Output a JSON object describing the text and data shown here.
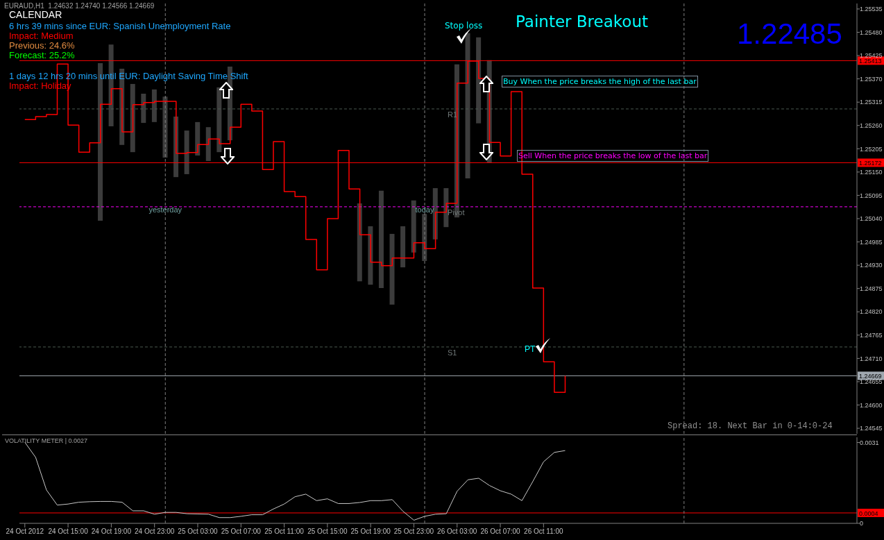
{
  "chart_data": [
    {
      "type": "bar",
      "title": "Painter Breakout",
      "subtitle": "EURAUD,H1  1.24632 1.24740 1.24566 1.24669",
      "annotations": [
        "CALENDAR",
        "6 hrs 39 mins since EUR: Spanish Unemployment Rate",
        "Impact: Medium",
        "Previous: 24.6%",
        "Forecast: 25.2%",
        "1 days 12 hrs 20 mins until EUR: Daylight Saving Time Shift",
        "Impact: Holiday",
        "Stop loss",
        "Buy When the price breaks the high of the last bar",
        "Sell When the price breaks the low of the last bar",
        "1.22485",
        "PT",
        "Spread: 18. Next Bar in 0-14:0-24"
      ],
      "series": [
        {
          "color": "#3c3c3c",
          "x": [
            "2012-10-24T18:00",
            "2012-10-24T19:00",
            "2012-10-24T20:00",
            "2012-10-24T21:00",
            "2012-10-24T22:00",
            "2012-10-24T23:00",
            "2012-10-25T00:00",
            "2012-10-25T01:00",
            "2012-10-25T02:00",
            "2012-10-25T03:00",
            "2012-10-25T04:00",
            "2012-10-25T05:00",
            "2012-10-25T06:00",
            "2012-10-25T18:00",
            "2012-10-25T19:00",
            "2012-10-25T20:00",
            "2012-10-25T21:00",
            "2012-10-25T22:00",
            "2012-10-25T23:00",
            "2012-10-26T00:00",
            "2012-10-26T01:00",
            "2012-10-26T02:00",
            "2012-10-26T03:00",
            "2012-10-26T04:00",
            "2012-10-26T05:00",
            "2012-10-26T06:00"
          ],
          "base": [
            1.25035,
            1.25258,
            1.25214,
            1.25197,
            1.25266,
            1.25268,
            1.25184,
            1.25138,
            1.25145,
            1.25189,
            1.25176,
            1.25197,
            1.25225,
            1.24892,
            1.24884,
            1.24876,
            1.24837,
            1.24925,
            1.2496,
            1.2494,
            1.24991,
            1.2502,
            1.25043,
            1.25135,
            1.25265,
            1.25171
          ],
          "values": [
            0.00372,
            0.00193,
            0.0018,
            0.00161,
            0.00069,
            0.00077,
            0.00144,
            0.00143,
            0.00103,
            0.00079,
            0.0008,
            0.00153,
            0.00174,
            0.00184,
            0.00138,
            0.0023,
            0.00167,
            0.00097,
            0.00123,
            0.00111,
            0.00121,
            0.00092,
            0.00361,
            0.00343,
            0.00203,
            0.00243
          ]
        },
        {
          "type": "step",
          "color": "#ff0000",
          "x": [
            "2012-10-24T11:00",
            "2012-10-24T12:00",
            "2012-10-24T13:00",
            "2012-10-24T14:00",
            "2012-10-24T15:00",
            "2012-10-24T16:00",
            "2012-10-24T17:00",
            "2012-10-24T18:00",
            "2012-10-24T19:00",
            "2012-10-24T20:00",
            "2012-10-24T21:00",
            "2012-10-24T22:00",
            "2012-10-24T23:00",
            "2012-10-25T00:00",
            "2012-10-25T01:00",
            "2012-10-25T02:00",
            "2012-10-25T03:00",
            "2012-10-25T04:00",
            "2012-10-25T05:00",
            "2012-10-25T06:00",
            "2012-10-25T07:00",
            "2012-10-25T08:00",
            "2012-10-25T09:00",
            "2012-10-25T10:00",
            "2012-10-25T11:00",
            "2012-10-25T12:00",
            "2012-10-25T13:00",
            "2012-10-25T14:00",
            "2012-10-25T15:00",
            "2012-10-25T16:00",
            "2012-10-25T17:00",
            "2012-10-25T18:00",
            "2012-10-25T19:00",
            "2012-10-25T20:00",
            "2012-10-25T21:00",
            "2012-10-25T22:00",
            "2012-10-25T23:00",
            "2012-10-26T00:00",
            "2012-10-26T01:00",
            "2012-10-26T02:00",
            "2012-10-26T03:00",
            "2012-10-26T04:00",
            "2012-10-26T05:00",
            "2012-10-26T06:00",
            "2012-10-26T07:00",
            "2012-10-26T08:00",
            "2012-10-26T09:00",
            "2012-10-26T10:00",
            "2012-10-26T11:00",
            "2012-10-26T12:00",
            "2012-10-26T13:00"
          ],
          "values": [
            1.25274,
            1.25281,
            1.25286,
            1.25405,
            1.25261,
            1.25197,
            1.25219,
            1.2531,
            1.25347,
            1.25245,
            1.25309,
            1.25314,
            1.25317,
            1.25317,
            1.25194,
            1.25196,
            1.25215,
            1.25228,
            1.25217,
            1.25256,
            1.2531,
            1.25294,
            1.25156,
            1.25222,
            1.25104,
            1.25092,
            1.24991,
            1.24919,
            1.2504,
            1.25201,
            1.2511,
            1.25002,
            1.24937,
            1.24929,
            1.24947,
            1.24947,
            1.24983,
            1.24969,
            1.25055,
            1.25076,
            1.2536,
            1.25412,
            1.25371,
            1.2522,
            1.25188,
            1.2534,
            1.25145,
            1.24876,
            1.24702,
            1.2463,
            1.24669
          ]
        }
      ],
      "xlim": [
        "2012-10-24T10:30",
        "2012-10-27T16:00"
      ],
      "ylim": [
        1.24532,
        1.25548
      ],
      "yticks": [
        1.25535,
        {
          "value": 1.2548,
          "label": "1.25480"
        },
        1.25425,
        {
          "value": 1.2537,
          "label": "1.25370"
        },
        1.25315,
        {
          "value": 1.2526,
          "label": "1.25260"
        },
        1.25205,
        {
          "value": 1.2515,
          "label": "1.25150"
        },
        1.25095,
        {
          "value": 1.2504,
          "label": "1.25040"
        },
        1.24985,
        {
          "value": 1.2493,
          "label": "1.24930"
        },
        1.24875,
        {
          "value": 1.2482,
          "label": "1.24820"
        },
        1.24765,
        {
          "value": 1.2471,
          "label": "1.24710"
        },
        1.24655,
        {
          "value": 1.246,
          "label": "1.24600"
        },
        1.24545
      ],
      "tick_labels": "y",
      "marker": "none",
      "ref_lines": [
        {
          "axis": "y",
          "value": 1.25413,
          "label": "1.25413",
          "color": "#ff0000"
        },
        {
          "axis": "y",
          "value": 1.25172,
          "label": "1.25172",
          "color": "#ff0000"
        },
        {
          "axis": "y",
          "value": 1.24669,
          "label": "1.24669",
          "color": "#a0a8b0"
        },
        {
          "axis": "y",
          "value": 1.25299,
          "label": "R1",
          "color": "#4a5a50",
          "line_style": "dashed"
        },
        {
          "axis": "y",
          "value": 1.25068,
          "label": "Pivot",
          "color": "#ff00ff",
          "line_style": "dashed"
        },
        {
          "axis": "y",
          "value": 1.24737,
          "label": "S1",
          "color": "#4a5a50",
          "line_style": "dashed"
        },
        {
          "axis": "x",
          "value": "2012-10-25T00:00",
          "label": "yesterday",
          "color": "#808080",
          "line_style": "dashed"
        },
        {
          "axis": "x",
          "value": "2012-10-26T00:00",
          "label": "today",
          "color": "#808080",
          "line_style": "dashed"
        },
        {
          "axis": "x",
          "value": "2012-10-27T00:00",
          "label": null,
          "color": "#808080",
          "line_style": "dashed"
        }
      ]
    },
    {
      "type": "line",
      "title": "VOLATILITY METER |  0.0027",
      "series": [
        {
          "color": "#c8c8c8",
          "x": [
            "2012-10-24T11:00",
            "2012-10-24T12:00",
            "2012-10-24T13:00",
            "2012-10-24T14:00",
            "2012-10-24T15:00",
            "2012-10-24T16:00",
            "2012-10-24T17:00",
            "2012-10-24T18:00",
            "2012-10-24T19:00",
            "2012-10-24T20:00",
            "2012-10-24T21:00",
            "2012-10-24T22:00",
            "2012-10-24T23:00",
            "2012-10-25T00:00",
            "2012-10-25T01:00",
            "2012-10-25T02:00",
            "2012-10-25T03:00",
            "2012-10-25T04:00",
            "2012-10-25T05:00",
            "2012-10-25T06:00",
            "2012-10-25T07:00",
            "2012-10-25T08:00",
            "2012-10-25T09:00",
            "2012-10-25T10:00",
            "2012-10-25T11:00",
            "2012-10-25T12:00",
            "2012-10-25T13:00",
            "2012-10-25T14:00",
            "2012-10-25T15:00",
            "2012-10-25T16:00",
            "2012-10-25T17:00",
            "2012-10-25T18:00",
            "2012-10-25T19:00",
            "2012-10-25T20:00",
            "2012-10-25T21:00",
            "2012-10-25T22:00",
            "2012-10-25T23:00",
            "2012-10-26T00:00",
            "2012-10-26T01:00",
            "2012-10-26T02:00",
            "2012-10-26T03:00",
            "2012-10-26T04:00",
            "2012-10-26T05:00",
            "2012-10-26T06:00",
            "2012-10-26T07:00",
            "2012-10-26T08:00",
            "2012-10-26T09:00",
            "2012-10-26T10:00",
            "2012-10-26T11:00",
            "2012-10-26T12:00",
            "2012-10-26T13:00"
          ],
          "values": [
            0.00311,
            0.00253,
            0.00128,
            0.0007,
            0.00074,
            0.00081,
            0.00083,
            0.00084,
            0.00084,
            0.00081,
            0.00048,
            0.00048,
            0.00035,
            0.00042,
            0.00042,
            0.00037,
            0.00036,
            0.00035,
            0.00022,
            0.00022,
            0.00027,
            0.00033,
            0.00033,
            0.00055,
            0.00074,
            0.00102,
            0.00112,
            0.00087,
            0.00094,
            0.00076,
            0.00076,
            0.0008,
            0.00087,
            0.00087,
            0.00091,
            0.00046,
            0.00012,
            0.00027,
            0.00035,
            0.00037,
            0.00123,
            0.00167,
            0.00173,
            0.00145,
            0.00125,
            0.00112,
            0.00087,
            0.0016,
            0.00236,
            0.00272,
            0.00279
          ]
        }
      ],
      "xlim": [
        "2012-10-24T10:30",
        "2012-10-27T16:00"
      ],
      "ylim": [
        0,
        0.0033
      ],
      "yticks": [
        0,
        0.0031
      ],
      "xticks": [
        {
          "value": "2012-10-24T11:00",
          "label": "24 Oct 2012"
        },
        {
          "value": "2012-10-24T15:00",
          "label": "24 Oct 15:00"
        },
        {
          "value": "2012-10-24T19:00",
          "label": "24 Oct 19:00"
        },
        {
          "value": "2012-10-24T23:00",
          "label": "24 Oct 23:00"
        },
        {
          "value": "2012-10-25T03:00",
          "label": "25 Oct 03:00"
        },
        {
          "value": "2012-10-25T07:00",
          "label": "25 Oct 07:00"
        },
        {
          "value": "2012-10-25T11:00",
          "label": "25 Oct 11:00"
        },
        {
          "value": "2012-10-25T15:00",
          "label": "25 Oct 15:00"
        },
        {
          "value": "2012-10-25T19:00",
          "label": "25 Oct 19:00"
        },
        {
          "value": "2012-10-25T23:00",
          "label": "25 Oct 23:00"
        },
        {
          "value": "2012-10-26T03:00",
          "label": "26 Oct 03:00"
        },
        {
          "value": "2012-10-26T07:00",
          "label": "26 Oct 07:00"
        },
        {
          "value": "2012-10-26T11:00",
          "label": "26 Oct 11:00"
        }
      ],
      "marker": "none",
      "ref_lines": [
        {
          "axis": "y",
          "value": 0.0004,
          "label": "0.0004",
          "color": "#ff0000"
        },
        {
          "axis": "x",
          "value": "2012-10-25T00:00",
          "label": null,
          "color": "#808080",
          "line_style": "dashed"
        },
        {
          "axis": "x",
          "value": "2012-10-26T00:00",
          "label": null,
          "color": "#808080",
          "line_style": "dashed"
        },
        {
          "axis": "x",
          "value": "2012-10-27T00:00",
          "label": null,
          "color": "#808080",
          "line_style": "dashed"
        }
      ]
    }
  ]
}
